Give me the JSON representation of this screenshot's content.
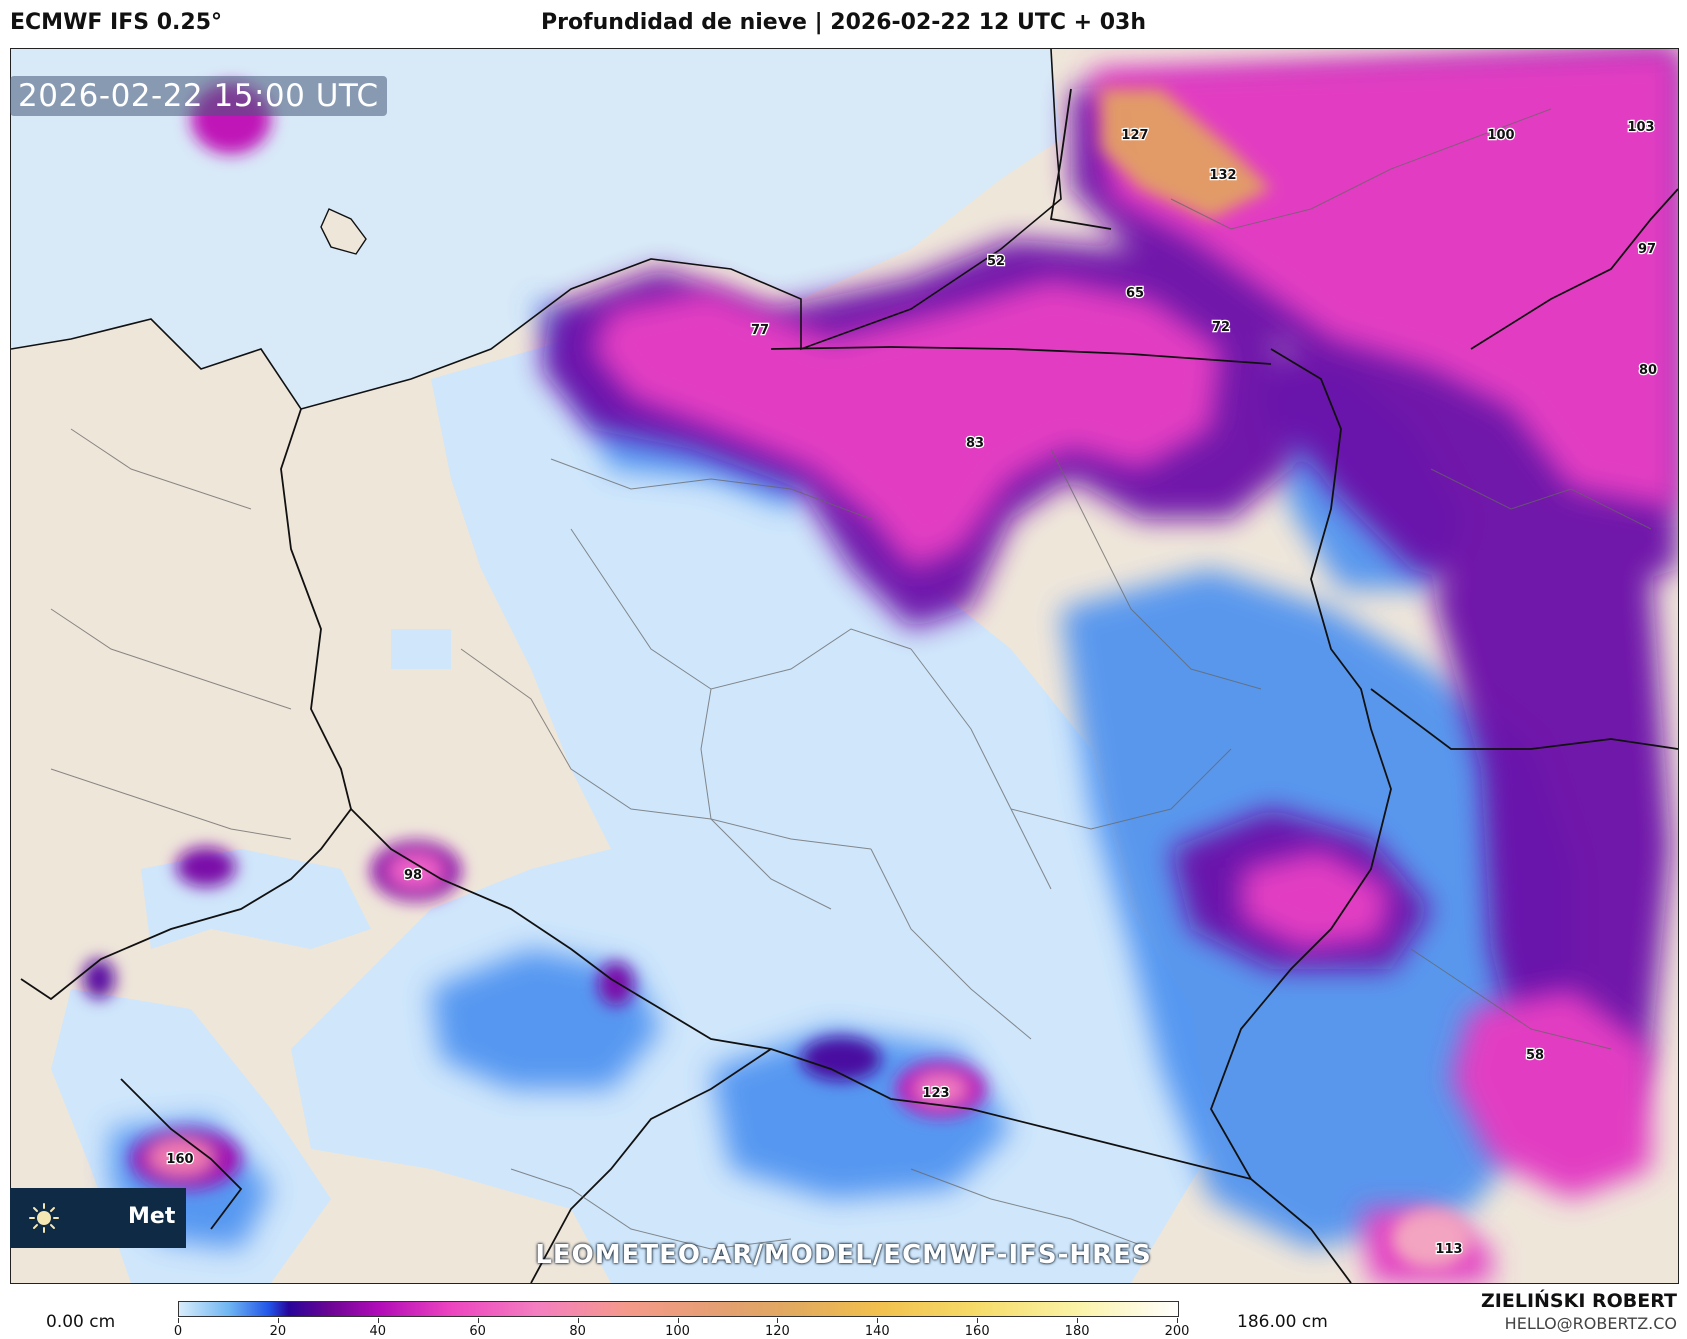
{
  "header": {
    "model": "ECMWF IFS 0.25°",
    "title": "Profundidad de nieve | 2026-02-22 12 UTC + 03h"
  },
  "map": {
    "valid_time": "2026-02-22 15:00 UTC",
    "watermark": "LEOMETEO.AR/MODEL/ECMWF-IFS-HRES",
    "logo_icon": "sun-icon",
    "logo_text": "Met",
    "value_labels": [
      "127",
      "132",
      "100",
      "103",
      "97",
      "80",
      "52",
      "65",
      "72",
      "77",
      "83",
      "98",
      "160",
      "123",
      "58",
      "113"
    ],
    "colors": {
      "sea": "#d8e9f8",
      "land": "#efe6da",
      "light_snow": "#cfe6fb"
    }
  },
  "legend": {
    "min_label": "0.00 cm",
    "max_label": "186.00 cm",
    "ticks": [
      "0",
      "20",
      "40",
      "60",
      "80",
      "100",
      "120",
      "140",
      "160",
      "180",
      "200"
    ]
  },
  "author": {
    "name": "ZIELIŃSKI ROBERT",
    "email": "HELLO@ROBERTZ.CO"
  }
}
